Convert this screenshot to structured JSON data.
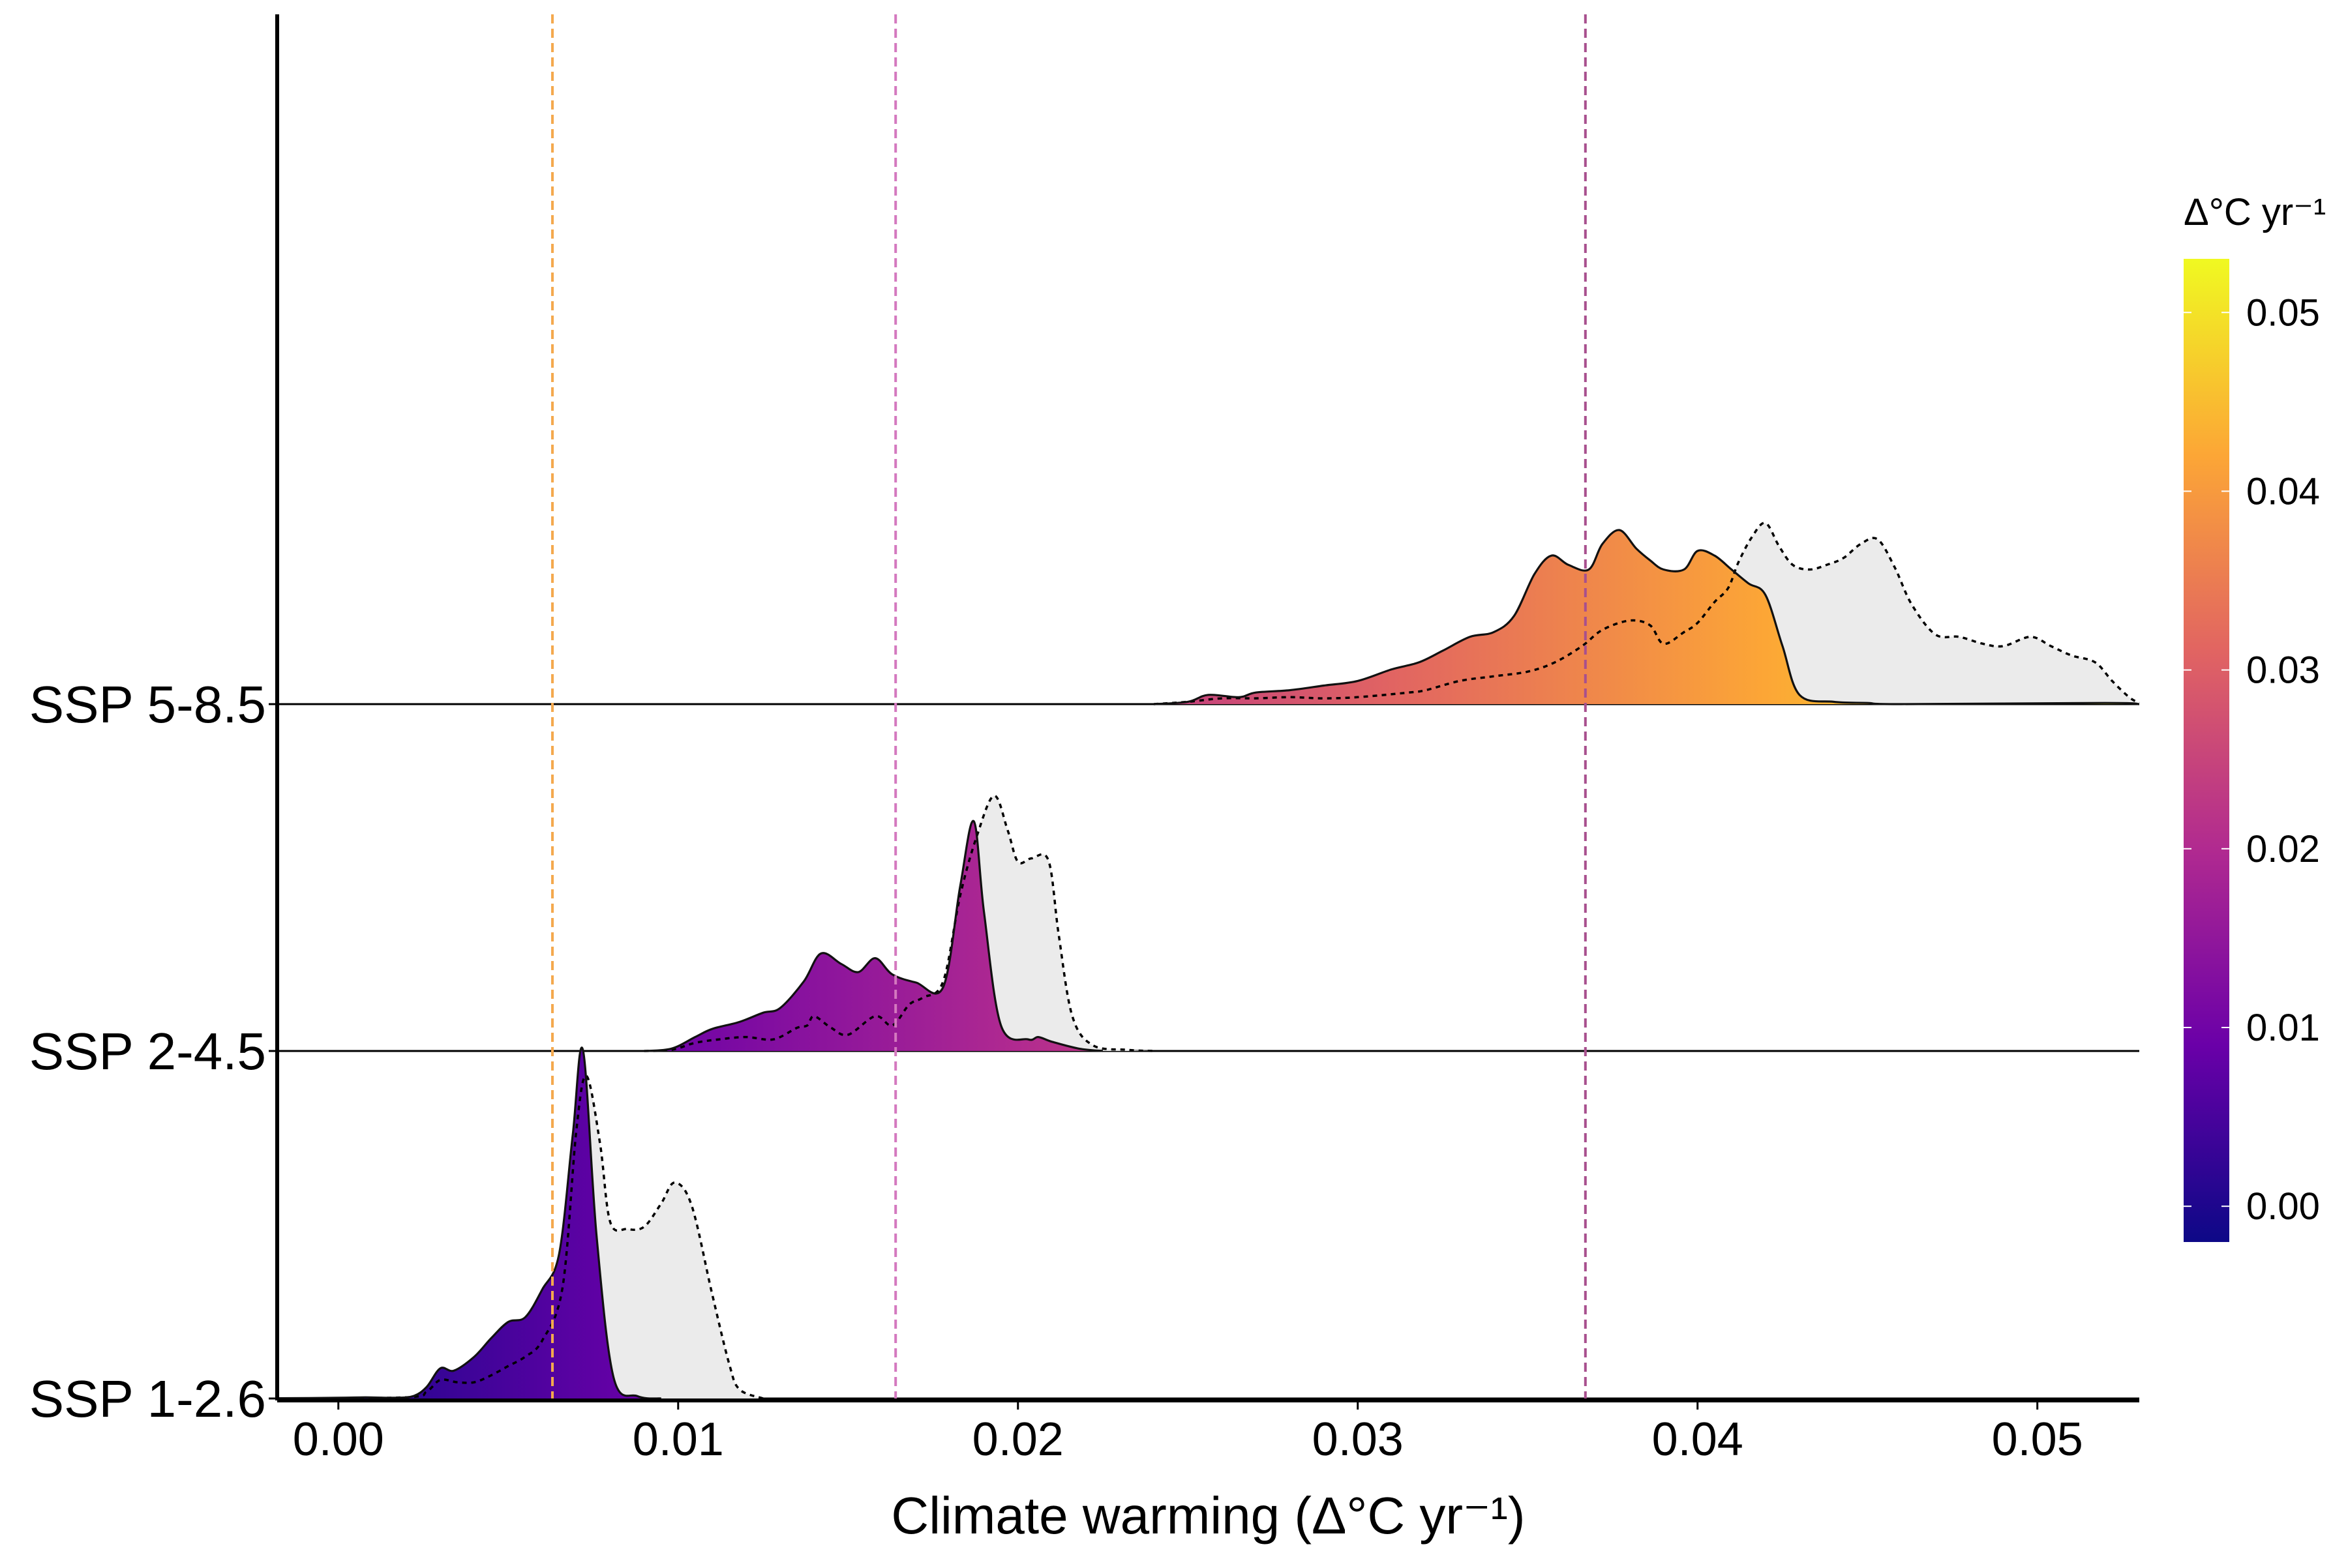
{
  "chart_data": {
    "type": "ridgeline-density",
    "xlabel": "Climate warming (Δ°C yr⁻¹)",
    "xlim": [
      -0.0018,
      0.053
    ],
    "x_ticks": [
      0.0,
      0.01,
      0.02,
      0.03,
      0.04,
      0.05
    ],
    "x_tick_labels": [
      "0.00",
      "0.01",
      "0.02",
      "0.03",
      "0.04",
      "0.05"
    ],
    "legend": {
      "title": "Δ°C yr⁻¹",
      "type": "colorbar",
      "palette": "plasma",
      "range": [
        -0.002,
        0.053
      ],
      "ticks": [
        0.0,
        0.01,
        0.02,
        0.03,
        0.04,
        0.05
      ],
      "tick_labels": [
        "0.00",
        "0.01",
        "0.02",
        "0.03",
        "0.04",
        "0.05"
      ],
      "placement": "right"
    },
    "colors": {
      "palette_stops": [
        "#0d0887",
        "#6a00a8",
        "#b12a90",
        "#e16462",
        "#fca636",
        "#f0f921"
      ],
      "reference_fill": "#ebebeb"
    },
    "vline_labels_note": "",
    "series": [
      {
        "name": "SSP 1-2.6",
        "reference_line": 0.0063,
        "reference_line_color": "#f4a94e",
        "density": [
          [
            -0.0018,
            0.002
          ],
          [
            0,
            0.006
          ],
          [
            0.0008,
            0.01
          ],
          [
            0.0016,
            0.006
          ],
          [
            0.0022,
            0.02
          ],
          [
            0.0026,
            0.1
          ],
          [
            0.003,
            0.26
          ],
          [
            0.0034,
            0.24
          ],
          [
            0.004,
            0.36
          ],
          [
            0.0045,
            0.52
          ],
          [
            0.005,
            0.66
          ],
          [
            0.0055,
            0.7
          ],
          [
            0.006,
            0.94
          ],
          [
            0.0065,
            1.25
          ],
          [
            0.0069,
            2.28
          ],
          [
            0.0072,
            3.0
          ],
          [
            0.0076,
            1.4
          ],
          [
            0.0081,
            0.18
          ],
          [
            0.0088,
            0.02
          ],
          [
            0.0095,
            0
          ]
        ],
        "reference_density": [
          [
            -0.0018,
            0
          ],
          [
            0.002,
            0.01
          ],
          [
            0.0026,
            0.06
          ],
          [
            0.003,
            0.16
          ],
          [
            0.0035,
            0.14
          ],
          [
            0.004,
            0.14
          ],
          [
            0.0045,
            0.2
          ],
          [
            0.005,
            0.28
          ],
          [
            0.0055,
            0.36
          ],
          [
            0.006,
            0.5
          ],
          [
            0.0066,
            0.96
          ],
          [
            0.007,
            2.3
          ],
          [
            0.0073,
            2.78
          ],
          [
            0.0077,
            2.2
          ],
          [
            0.008,
            1.52
          ],
          [
            0.0085,
            1.46
          ],
          [
            0.009,
            1.48
          ],
          [
            0.0095,
            1.68
          ],
          [
            0.0099,
            1.86
          ],
          [
            0.0104,
            1.66
          ],
          [
            0.011,
            0.9
          ],
          [
            0.0115,
            0.3
          ],
          [
            0.0118,
            0.08
          ],
          [
            0.0125,
            0
          ]
        ]
      },
      {
        "name": "SSP 2-4.5",
        "reference_line": 0.0164,
        "reference_line_color": "#d479bf",
        "density": [
          [
            0.009,
            0
          ],
          [
            0.0098,
            0.02
          ],
          [
            0.0105,
            0.12
          ],
          [
            0.011,
            0.19
          ],
          [
            0.0118,
            0.25
          ],
          [
            0.0125,
            0.33
          ],
          [
            0.013,
            0.37
          ],
          [
            0.0137,
            0.6
          ],
          [
            0.0142,
            0.84
          ],
          [
            0.0148,
            0.75
          ],
          [
            0.0153,
            0.68
          ],
          [
            0.0158,
            0.8
          ],
          [
            0.0163,
            0.66
          ],
          [
            0.017,
            0.59
          ],
          [
            0.0178,
            0.55
          ],
          [
            0.0183,
            1.42
          ],
          [
            0.0187,
            1.98
          ],
          [
            0.019,
            1.2
          ],
          [
            0.0195,
            0.22
          ],
          [
            0.0203,
            0.1
          ],
          [
            0.0206,
            0.12
          ],
          [
            0.021,
            0.08
          ],
          [
            0.0218,
            0.02
          ],
          [
            0.0225,
            0
          ]
        ],
        "reference_density": [
          [
            0.009,
            0
          ],
          [
            0.0098,
            0.01
          ],
          [
            0.0105,
            0.07
          ],
          [
            0.0112,
            0.1
          ],
          [
            0.012,
            0.12
          ],
          [
            0.0128,
            0.1
          ],
          [
            0.0135,
            0.2
          ],
          [
            0.0138,
            0.22
          ],
          [
            0.014,
            0.3
          ],
          [
            0.0145,
            0.2
          ],
          [
            0.015,
            0.14
          ],
          [
            0.0158,
            0.3
          ],
          [
            0.0163,
            0.22
          ],
          [
            0.0168,
            0.4
          ],
          [
            0.0172,
            0.46
          ],
          [
            0.0178,
            0.6
          ],
          [
            0.0183,
            1.34
          ],
          [
            0.0188,
            1.86
          ],
          [
            0.0193,
            2.2
          ],
          [
            0.0197,
            1.9
          ],
          [
            0.02,
            1.63
          ],
          [
            0.0204,
            1.66
          ],
          [
            0.0209,
            1.64
          ],
          [
            0.0212,
            1.0
          ],
          [
            0.0216,
            0.3
          ],
          [
            0.0222,
            0.05
          ],
          [
            0.0232,
            0.01
          ],
          [
            0.024,
            0
          ]
        ]
      },
      {
        "name": "SSP 5-8.5",
        "reference_line": 0.0367,
        "reference_line_color": "#a8508e",
        "density": [
          [
            0.024,
            0
          ],
          [
            0.025,
            0.02
          ],
          [
            0.0256,
            0.08
          ],
          [
            0.0265,
            0.06
          ],
          [
            0.027,
            0.1
          ],
          [
            0.028,
            0.12
          ],
          [
            0.029,
            0.16
          ],
          [
            0.03,
            0.2
          ],
          [
            0.031,
            0.3
          ],
          [
            0.0318,
            0.36
          ],
          [
            0.0325,
            0.46
          ],
          [
            0.0333,
            0.58
          ],
          [
            0.034,
            0.62
          ],
          [
            0.0346,
            0.76
          ],
          [
            0.0352,
            1.12
          ],
          [
            0.0357,
            1.28
          ],
          [
            0.0362,
            1.2
          ],
          [
            0.0368,
            1.16
          ],
          [
            0.0372,
            1.38
          ],
          [
            0.0377,
            1.5
          ],
          [
            0.0382,
            1.34
          ],
          [
            0.0386,
            1.24
          ],
          [
            0.039,
            1.16
          ],
          [
            0.0396,
            1.16
          ],
          [
            0.04,
            1.32
          ],
          [
            0.0405,
            1.28
          ],
          [
            0.041,
            1.16
          ],
          [
            0.0415,
            1.04
          ],
          [
            0.042,
            0.94
          ],
          [
            0.0425,
            0.5
          ],
          [
            0.043,
            0.08
          ],
          [
            0.044,
            0.02
          ],
          [
            0.045,
            0.01
          ],
          [
            0.046,
            0
          ],
          [
            0.052,
            0.01
          ],
          [
            0.053,
            0
          ]
        ],
        "reference_density": [
          [
            0.024,
            0
          ],
          [
            0.025,
            0.02
          ],
          [
            0.026,
            0.05
          ],
          [
            0.027,
            0.05
          ],
          [
            0.028,
            0.06
          ],
          [
            0.029,
            0.05
          ],
          [
            0.03,
            0.06
          ],
          [
            0.0315,
            0.1
          ],
          [
            0.032,
            0.12
          ],
          [
            0.033,
            0.2
          ],
          [
            0.034,
            0.24
          ],
          [
            0.035,
            0.28
          ],
          [
            0.0358,
            0.36
          ],
          [
            0.0366,
            0.5
          ],
          [
            0.0372,
            0.64
          ],
          [
            0.038,
            0.72
          ],
          [
            0.0386,
            0.68
          ],
          [
            0.039,
            0.52
          ],
          [
            0.0396,
            0.62
          ],
          [
            0.04,
            0.7
          ],
          [
            0.0405,
            0.88
          ],
          [
            0.0409,
            1.0
          ],
          [
            0.0412,
            1.22
          ],
          [
            0.0416,
            1.44
          ],
          [
            0.042,
            1.56
          ],
          [
            0.0424,
            1.36
          ],
          [
            0.0428,
            1.2
          ],
          [
            0.0433,
            1.16
          ],
          [
            0.0438,
            1.2
          ],
          [
            0.0443,
            1.26
          ],
          [
            0.0448,
            1.38
          ],
          [
            0.0453,
            1.42
          ],
          [
            0.0458,
            1.18
          ],
          [
            0.0463,
            0.86
          ],
          [
            0.047,
            0.6
          ],
          [
            0.0477,
            0.58
          ],
          [
            0.0484,
            0.52
          ],
          [
            0.049,
            0.5
          ],
          [
            0.0498,
            0.58
          ],
          [
            0.0504,
            0.5
          ],
          [
            0.051,
            0.42
          ],
          [
            0.0517,
            0.36
          ],
          [
            0.0522,
            0.2
          ],
          [
            0.0527,
            0.06
          ],
          [
            0.053,
            0.01
          ]
        ]
      }
    ]
  }
}
